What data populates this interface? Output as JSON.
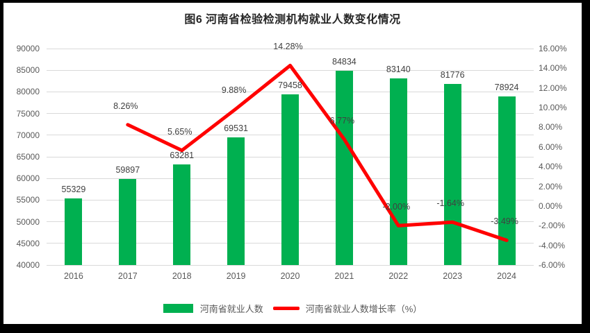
{
  "title": "图6  河南省检验检测机构就业人数变化情况",
  "colors": {
    "bar": "#00B050",
    "line": "#FF0000",
    "gridline": "#d9d9d9",
    "axis_text": "#595959",
    "data_label_text": "#404040",
    "title_text": "#262626",
    "frame_border": "#000000",
    "background": "#ffffff"
  },
  "chart_data": {
    "type": "bar",
    "subtype": "bar+line combo, dual axis",
    "title": "图6  河南省检验检测机构就业人数变化情况",
    "categories": [
      "2016",
      "2017",
      "2018",
      "2019",
      "2020",
      "2021",
      "2022",
      "2023",
      "2024"
    ],
    "series": [
      {
        "name": "河南省就业人数",
        "type": "bar",
        "axis": "left",
        "color": "#00B050",
        "values": [
          55329,
          59897,
          63281,
          69531,
          79458,
          84834,
          83140,
          81776,
          78924
        ],
        "labels": [
          "55329",
          "59897",
          "63281",
          "69531",
          "79458",
          "84834",
          "83140",
          "81776",
          "78924"
        ]
      },
      {
        "name": "河南省就业人数增长率（%）",
        "type": "line",
        "axis": "right",
        "color": "#FF0000",
        "values": [
          null,
          8.26,
          5.65,
          9.88,
          14.28,
          6.77,
          -2.0,
          -1.64,
          -3.49
        ],
        "labels": [
          null,
          "8.26%",
          "5.65%",
          "9.88%",
          "14.28%",
          "6.77%",
          "-2.00%",
          "-1.64%",
          "-3.49%"
        ]
      }
    ],
    "left_axis": {
      "min": 40000,
      "max": 90000,
      "step": 5000,
      "tick_labels": [
        "90000",
        "85000",
        "80000",
        "75000",
        "70000",
        "65000",
        "60000",
        "55000",
        "50000",
        "45000",
        "40000"
      ]
    },
    "right_axis": {
      "min": -6,
      "max": 16,
      "step": 2,
      "tick_labels": [
        "16.00%",
        "14.00%",
        "12.00%",
        "10.00%",
        "8.00%",
        "6.00%",
        "4.00%",
        "2.00%",
        "0.00%",
        "-2.00%",
        "-4.00%",
        "-6.00%"
      ]
    },
    "grid": true,
    "legend_position": "bottom",
    "legend": [
      "河南省就业人数",
      "河南省就业人数增长率（%）"
    ]
  }
}
